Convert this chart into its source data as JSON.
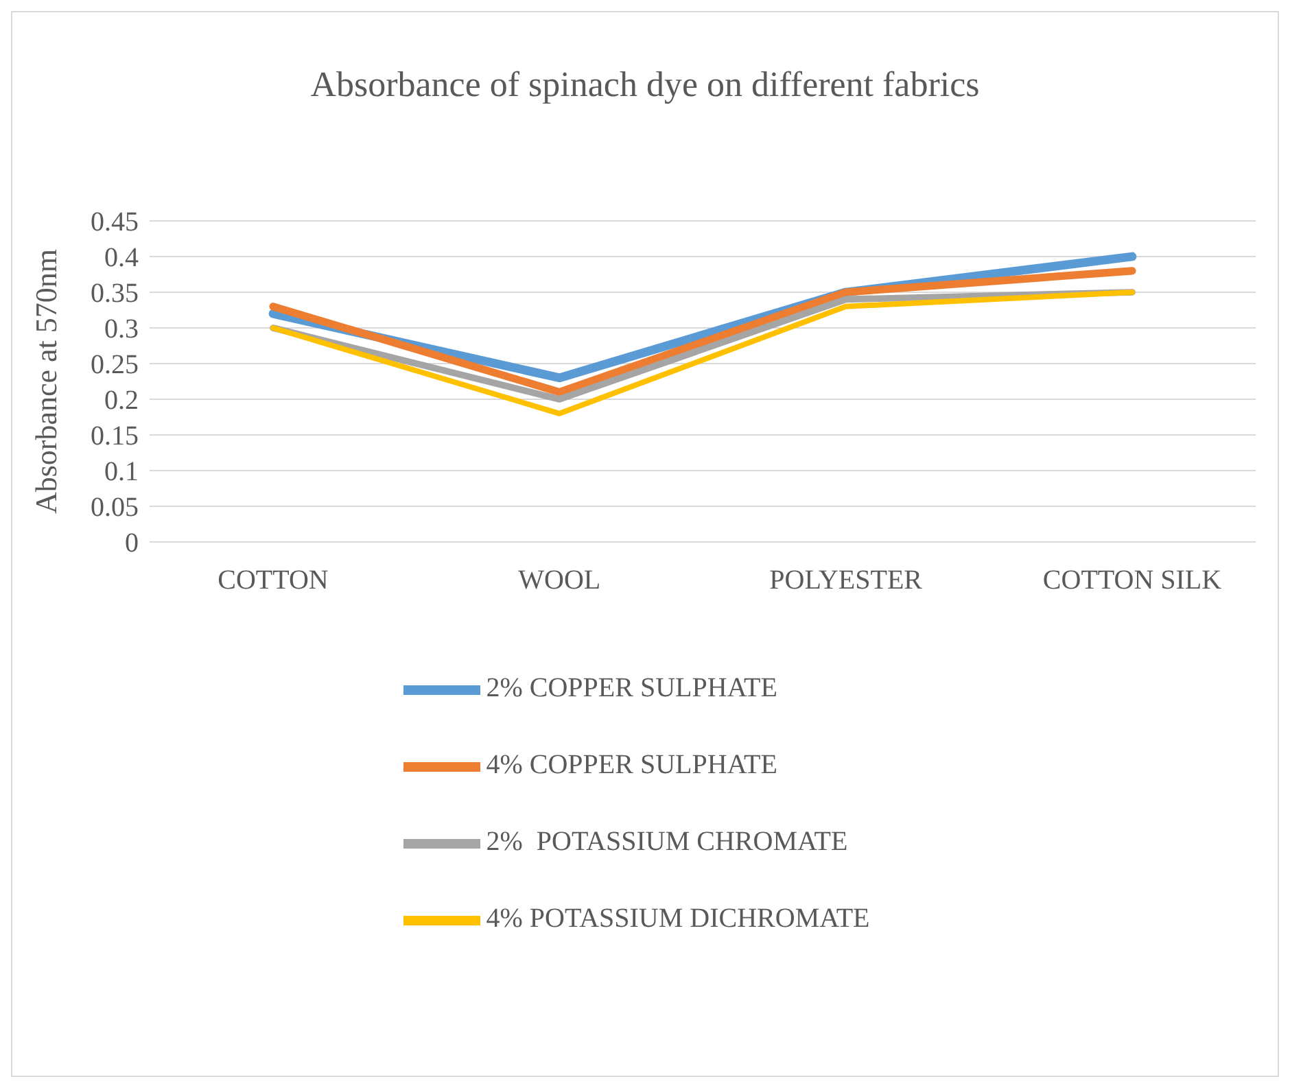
{
  "chart_data": {
    "type": "line",
    "title": "Absorbance of spinach dye on different fabrics",
    "ylabel": "Absorbance at 570nm",
    "categories": [
      "COTTON",
      "WOOL",
      "POLYESTER",
      "COTTON SILK"
    ],
    "series": [
      {
        "name": "2% COPPER SULPHATE",
        "color": "#5b9bd5",
        "values": [
          0.32,
          0.23,
          0.35,
          0.4
        ]
      },
      {
        "name": "4% COPPER SULPHATE",
        "color": "#ed7d31",
        "values": [
          0.33,
          0.21,
          0.35,
          0.38
        ]
      },
      {
        "name": "2%  POTASSIUM CHROMATE",
        "color": "#a5a5a5",
        "values": [
          0.3,
          0.2,
          0.34,
          0.35
        ]
      },
      {
        "name": "4% POTASSIUM DICHROMATE",
        "color": "#ffc000",
        "values": [
          0.3,
          0.18,
          0.33,
          0.35
        ]
      }
    ],
    "ylim": [
      0,
      0.45
    ],
    "yticks": [
      0,
      0.05,
      0.1,
      0.15,
      0.2,
      0.25,
      0.3,
      0.35,
      0.4,
      0.45
    ],
    "grid": "y",
    "legend": "bottom",
    "marker": "none",
    "line_style": "solid"
  }
}
